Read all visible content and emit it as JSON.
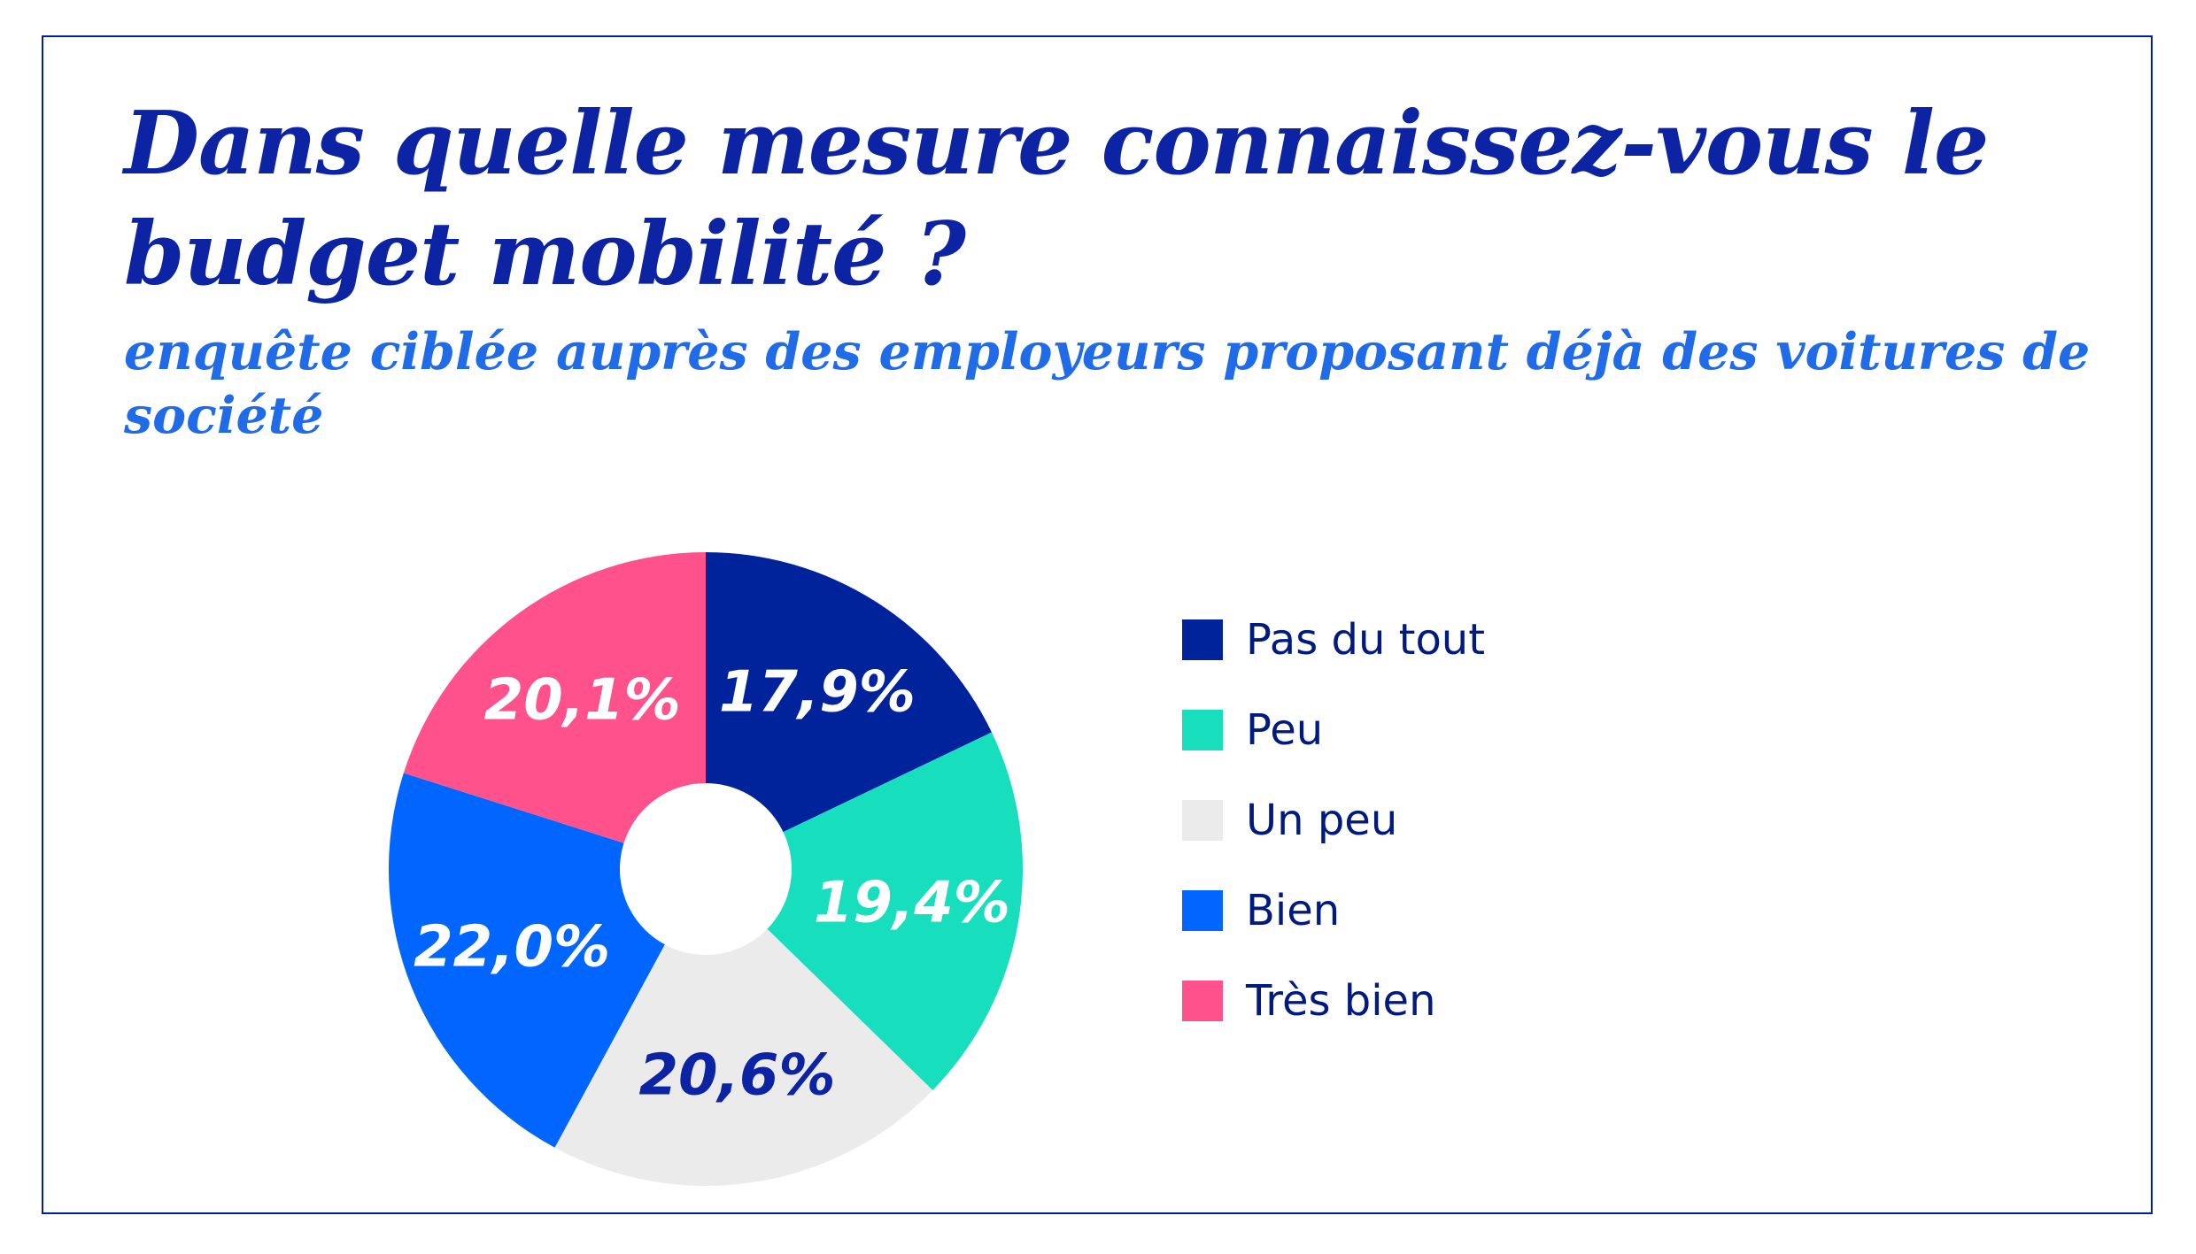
{
  "title": "Dans quelle mesure connaissez-vous le budget mobilité ?",
  "subtitle": "enquête ciblée auprès des employeurs proposant déjà des voitures de société",
  "chart_data": {
    "type": "pie",
    "title": "Dans quelle mesure connaissez-vous le budget mobilité ?",
    "subtitle": "enquête ciblée auprès des employeurs proposant déjà des voitures de société",
    "donut": true,
    "legend_position": "right",
    "slices": [
      {
        "label": "Pas du tout",
        "value": 17.9,
        "display": "17,9%",
        "color": "#00239c",
        "text_color": "#ffffff"
      },
      {
        "label": "Peu",
        "value": 19.4,
        "display": "19,4%",
        "color": "#17dfbd",
        "text_color": "#ffffff"
      },
      {
        "label": "Un peu",
        "value": 20.6,
        "display": "20,6%",
        "color": "#ebebeb",
        "text_color": "#0c24a3"
      },
      {
        "label": "Bien",
        "value": 22.0,
        "display": "22,0%",
        "color": "#0066ff",
        "text_color": "#ffffff"
      },
      {
        "label": "Très bien",
        "value": 20.1,
        "display": "20,1%",
        "color": "#ff528c",
        "text_color": "#ffffff"
      }
    ]
  }
}
